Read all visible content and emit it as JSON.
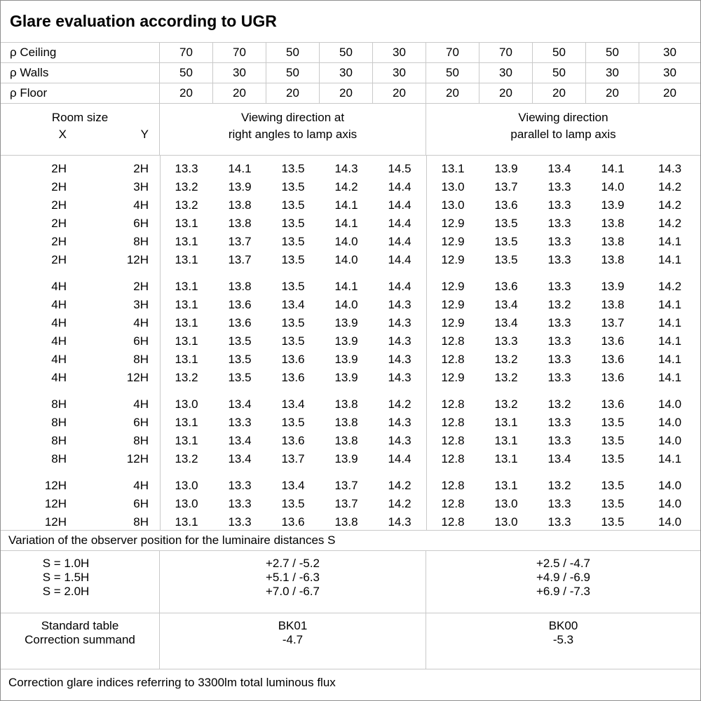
{
  "title": "Glare evaluation according to UGR",
  "reflectances": {
    "rows": [
      {
        "label": "ρ Ceiling",
        "values": [
          "70",
          "70",
          "50",
          "50",
          "30",
          "70",
          "70",
          "50",
          "50",
          "30"
        ]
      },
      {
        "label": "ρ Walls",
        "values": [
          "50",
          "30",
          "50",
          "30",
          "30",
          "50",
          "30",
          "50",
          "30",
          "30"
        ]
      },
      {
        "label": "ρ Floor",
        "values": [
          "20",
          "20",
          "20",
          "20",
          "20",
          "20",
          "20",
          "20",
          "20",
          "20"
        ]
      }
    ]
  },
  "room_header": {
    "title": "Room size",
    "x": "X",
    "y": "Y"
  },
  "direction_headers": {
    "right_angles": {
      "line1": "Viewing direction at",
      "line2": "right angles to lamp axis"
    },
    "parallel": {
      "line1": "Viewing direction",
      "line2": "parallel to lamp axis"
    }
  },
  "ugr_blocks": [
    {
      "rows": [
        {
          "x": "2H",
          "y": "2H",
          "values": [
            "13.3",
            "14.1",
            "13.5",
            "14.3",
            "14.5",
            "13.1",
            "13.9",
            "13.4",
            "14.1",
            "14.3"
          ]
        },
        {
          "x": "2H",
          "y": "3H",
          "values": [
            "13.2",
            "13.9",
            "13.5",
            "14.2",
            "14.4",
            "13.0",
            "13.7",
            "13.3",
            "14.0",
            "14.2"
          ]
        },
        {
          "x": "2H",
          "y": "4H",
          "values": [
            "13.2",
            "13.8",
            "13.5",
            "14.1",
            "14.4",
            "13.0",
            "13.6",
            "13.3",
            "13.9",
            "14.2"
          ]
        },
        {
          "x": "2H",
          "y": "6H",
          "values": [
            "13.1",
            "13.8",
            "13.5",
            "14.1",
            "14.4",
            "12.9",
            "13.5",
            "13.3",
            "13.8",
            "14.2"
          ]
        },
        {
          "x": "2H",
          "y": "8H",
          "values": [
            "13.1",
            "13.7",
            "13.5",
            "14.0",
            "14.4",
            "12.9",
            "13.5",
            "13.3",
            "13.8",
            "14.1"
          ]
        },
        {
          "x": "2H",
          "y": "12H",
          "values": [
            "13.1",
            "13.7",
            "13.5",
            "14.0",
            "14.4",
            "12.9",
            "13.5",
            "13.3",
            "13.8",
            "14.1"
          ]
        }
      ]
    },
    {
      "rows": [
        {
          "x": "4H",
          "y": "2H",
          "values": [
            "13.1",
            "13.8",
            "13.5",
            "14.1",
            "14.4",
            "12.9",
            "13.6",
            "13.3",
            "13.9",
            "14.2"
          ]
        },
        {
          "x": "4H",
          "y": "3H",
          "values": [
            "13.1",
            "13.6",
            "13.4",
            "14.0",
            "14.3",
            "12.9",
            "13.4",
            "13.2",
            "13.8",
            "14.1"
          ]
        },
        {
          "x": "4H",
          "y": "4H",
          "values": [
            "13.1",
            "13.6",
            "13.5",
            "13.9",
            "14.3",
            "12.9",
            "13.4",
            "13.3",
            "13.7",
            "14.1"
          ]
        },
        {
          "x": "4H",
          "y": "6H",
          "values": [
            "13.1",
            "13.5",
            "13.5",
            "13.9",
            "14.3",
            "12.8",
            "13.3",
            "13.3",
            "13.6",
            "14.1"
          ]
        },
        {
          "x": "4H",
          "y": "8H",
          "values": [
            "13.1",
            "13.5",
            "13.6",
            "13.9",
            "14.3",
            "12.8",
            "13.2",
            "13.3",
            "13.6",
            "14.1"
          ]
        },
        {
          "x": "4H",
          "y": "12H",
          "values": [
            "13.2",
            "13.5",
            "13.6",
            "13.9",
            "14.3",
            "12.9",
            "13.2",
            "13.3",
            "13.6",
            "14.1"
          ]
        }
      ]
    },
    {
      "rows": [
        {
          "x": "8H",
          "y": "4H",
          "values": [
            "13.0",
            "13.4",
            "13.4",
            "13.8",
            "14.2",
            "12.8",
            "13.2",
            "13.2",
            "13.6",
            "14.0"
          ]
        },
        {
          "x": "8H",
          "y": "6H",
          "values": [
            "13.1",
            "13.3",
            "13.5",
            "13.8",
            "14.3",
            "12.8",
            "13.1",
            "13.3",
            "13.5",
            "14.0"
          ]
        },
        {
          "x": "8H",
          "y": "8H",
          "values": [
            "13.1",
            "13.4",
            "13.6",
            "13.8",
            "14.3",
            "12.8",
            "13.1",
            "13.3",
            "13.5",
            "14.0"
          ]
        },
        {
          "x": "8H",
          "y": "12H",
          "values": [
            "13.2",
            "13.4",
            "13.7",
            "13.9",
            "14.4",
            "12.8",
            "13.1",
            "13.4",
            "13.5",
            "14.1"
          ]
        }
      ]
    },
    {
      "rows": [
        {
          "x": "12H",
          "y": "4H",
          "values": [
            "13.0",
            "13.3",
            "13.4",
            "13.7",
            "14.2",
            "12.8",
            "13.1",
            "13.2",
            "13.5",
            "14.0"
          ]
        },
        {
          "x": "12H",
          "y": "6H",
          "values": [
            "13.0",
            "13.3",
            "13.5",
            "13.7",
            "14.2",
            "12.8",
            "13.0",
            "13.3",
            "13.5",
            "14.0"
          ]
        },
        {
          "x": "12H",
          "y": "8H",
          "values": [
            "13.1",
            "13.3",
            "13.6",
            "13.8",
            "14.3",
            "12.8",
            "13.0",
            "13.3",
            "13.5",
            "14.0"
          ]
        }
      ]
    }
  ],
  "variation_note": "Variation of the observer position for the luminaire distances S",
  "spacing_rows": [
    {
      "label": "S = 1.0H",
      "right_angles": "+2.7 / -5.2",
      "parallel": "+2.5 / -4.7"
    },
    {
      "label": "S = 1.5H",
      "right_angles": "+5.1 / -6.3",
      "parallel": "+4.9 / -6.9"
    },
    {
      "label": "S = 2.0H",
      "right_angles": "+7.0 / -6.7",
      "parallel": "+6.9 / -7.3"
    }
  ],
  "standard_table": {
    "label": "Standard table",
    "right_angles": "BK01",
    "parallel": "BK00"
  },
  "correction_summand": {
    "label": "Correction summand",
    "right_angles": "-4.7",
    "parallel": "-5.3"
  },
  "bottom_note": "Correction glare indices referring to 3300lm total luminous flux",
  "colors": {
    "grid_line": "#c9c9c9",
    "outer_border": "#8f8f8f",
    "text": "#000000",
    "background": "#ffffff"
  }
}
